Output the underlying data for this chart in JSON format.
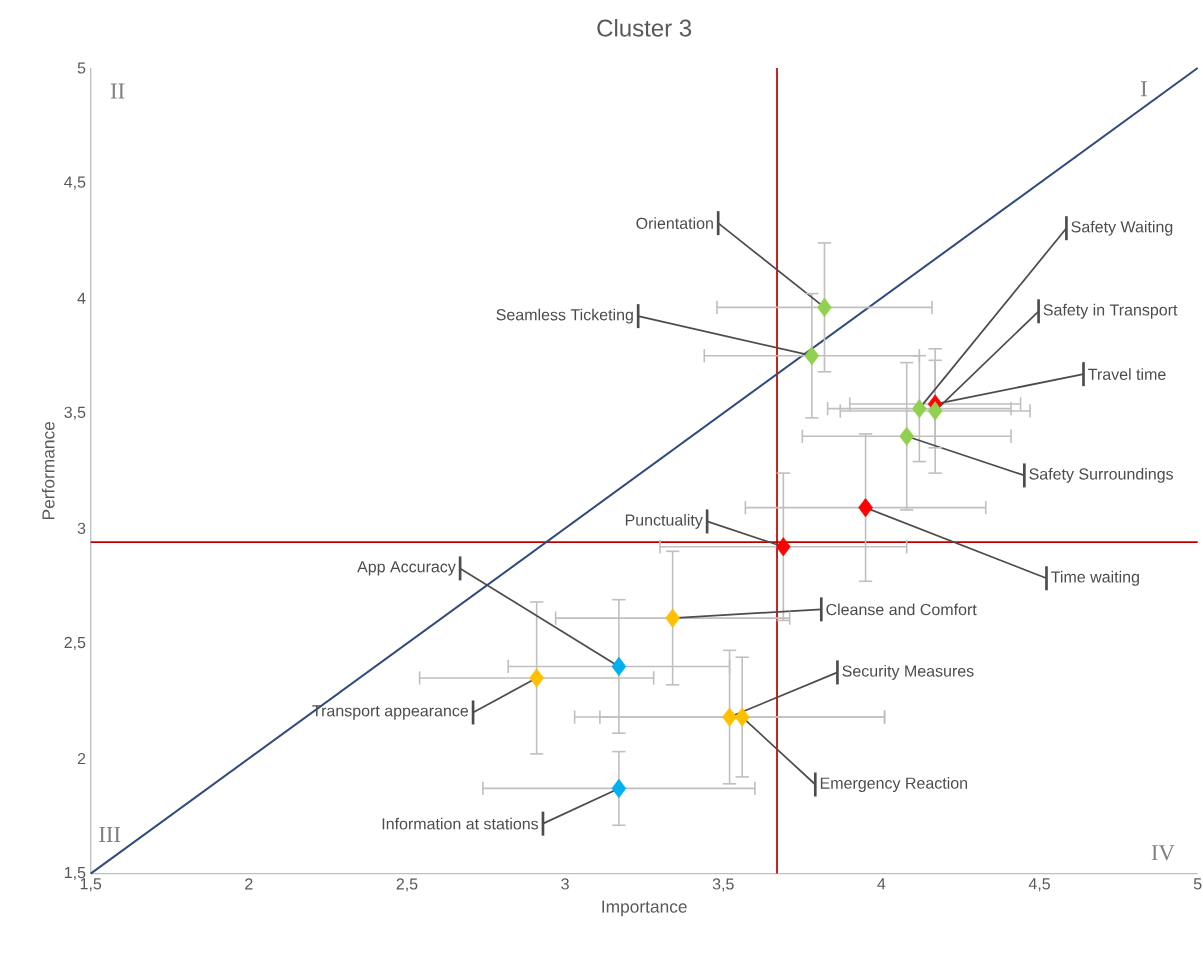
{
  "chart_data": {
    "type": "scatter",
    "title": "Cluster 3",
    "xlabel": "Importance",
    "ylabel": "Performance",
    "xlim": [
      1.5,
      5
    ],
    "ylim": [
      1.5,
      5
    ],
    "xticks": [
      {
        "value": 1.5,
        "label": "1,5"
      },
      2,
      {
        "value": 2.5,
        "label": "2,5"
      },
      3,
      {
        "value": 3.5,
        "label": "3,5"
      },
      4,
      {
        "value": 4.5,
        "label": "4,5"
      },
      5
    ],
    "yticks": [
      {
        "value": 1.5,
        "label": "1,5"
      },
      2,
      {
        "value": 2.5,
        "label": "2,5"
      },
      3,
      {
        "value": 3.5,
        "label": "3,5"
      },
      4,
      {
        "value": 4.5,
        "label": "4,5"
      },
      5
    ],
    "marker": "diamond",
    "series": [
      {
        "type": "line",
        "marker": "none",
        "color": "#2f4b7c",
        "x": [
          1.5,
          5
        ],
        "values": [
          1.5,
          5
        ]
      },
      {
        "color": "#00b0f0",
        "x": [
          3.17,
          3.17
        ],
        "values": [
          2.4,
          1.87
        ],
        "xerrors": [
          0.35,
          0.43
        ],
        "errors": [
          0.29,
          0.16
        ]
      },
      {
        "color": "#ffc000",
        "x": [
          3.34,
          2.91,
          3.52,
          3.56
        ],
        "values": [
          2.61,
          2.35,
          2.18,
          2.18
        ],
        "xerrors": [
          0.37,
          0.37,
          0.49,
          0.45
        ],
        "errors": [
          0.29,
          0.33,
          0.29,
          0.26
        ]
      },
      {
        "color": "#ff0000",
        "x": [
          3.69,
          3.95,
          4.17
        ],
        "values": [
          2.92,
          3.09,
          3.54
        ],
        "xerrors": [
          0.39,
          0.38,
          0.27
        ],
        "errors": [
          0.32,
          0.32,
          0.19
        ]
      },
      {
        "color": "#92d050",
        "x": [
          3.82,
          3.78,
          4.12,
          4.17,
          4.08
        ],
        "values": [
          3.96,
          3.75,
          3.52,
          3.51,
          3.4
        ],
        "xerrors": [
          0.34,
          0.34,
          0.29,
          0.3,
          0.33
        ],
        "errors": [
          0.28,
          0.27,
          0.23,
          0.27,
          0.32
        ]
      }
    ],
    "ref_lines": [
      {
        "axis": "x",
        "value": 3.67,
        "color": "#c00000"
      },
      {
        "axis": "y",
        "value": 2.94,
        "color": "#c00000"
      }
    ],
    "annotations": [
      "I",
      "II",
      "III",
      "IV",
      {
        "text": "Orientation",
        "x": 3.82,
        "y": 3.96
      },
      {
        "text": "Seamless Ticketing",
        "x": 3.78,
        "y": 3.75
      },
      {
        "text": "Safety Waiting",
        "x": 4.12,
        "y": 3.52
      },
      {
        "text": "Safety in Transport",
        "x": 4.17,
        "y": 3.51
      },
      {
        "text": "Travel time",
        "x": 4.17,
        "y": 3.54
      },
      {
        "text": "Safety Surroundings",
        "x": 4.08,
        "y": 3.4
      },
      {
        "text": "Punctuality",
        "x": 3.69,
        "y": 2.92
      },
      {
        "text": "Time waiting",
        "x": 3.95,
        "y": 3.09
      },
      {
        "text": "App Accuracy",
        "x": 3.17,
        "y": 2.4
      },
      {
        "text": "Cleanse and Comfort",
        "x": 3.34,
        "y": 2.61
      },
      {
        "text": "Security Measures",
        "x": 3.52,
        "y": 2.18
      },
      {
        "text": "Transport appearance",
        "x": 2.91,
        "y": 2.35
      },
      {
        "text": "Emergency Reaction",
        "x": 3.56,
        "y": 2.18
      },
      {
        "text": "Information at stations",
        "x": 3.17,
        "y": 1.87
      }
    ]
  }
}
